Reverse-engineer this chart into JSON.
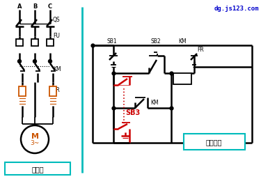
{
  "bg_color": "#ffffff",
  "line_color": "#000000",
  "red_color": "#cc0000",
  "cyan_color": "#00bbbb",
  "orange_color": "#cc5500",
  "blue_color": "#0000cc",
  "title_text": "dg.js123.com",
  "label_zhu": "主电路",
  "label_kong": "控制电路",
  "label_A": "A",
  "label_B": "B",
  "label_C": "C",
  "label_QS": "QS",
  "label_FU": "FU",
  "label_KM_main": "KM",
  "label_FR_main": "FR",
  "label_M": "M",
  "label_3tilde": "3~",
  "label_SB1": "SB1",
  "label_SB2": "SB2",
  "label_SB3": "SB3",
  "label_KM_ctrl": "KM",
  "label_KM_coil": "KM",
  "label_FR_ctrl": "FR"
}
